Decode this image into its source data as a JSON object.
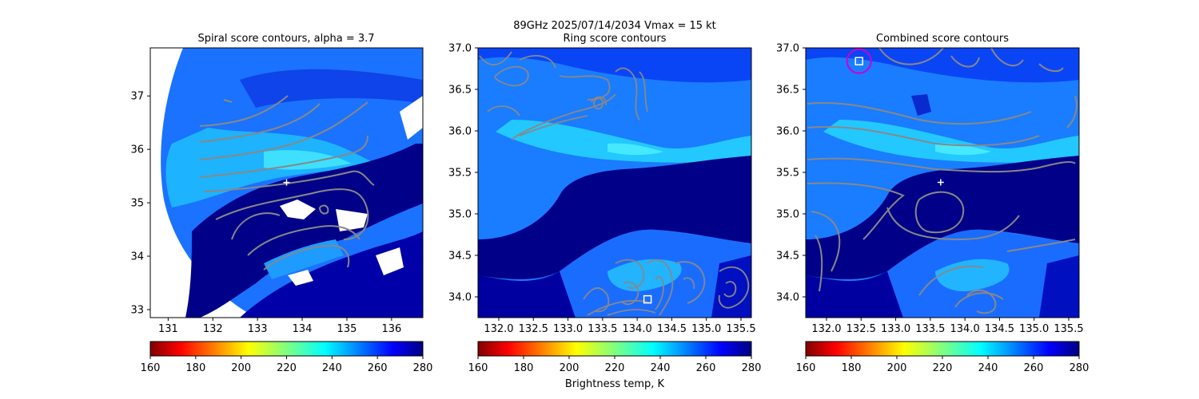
{
  "suptitle_line1": "89GHz  2025/07/14/2034    Vmax = 15 kt",
  "colors": {
    "warm_blue": "#00c8ff",
    "cyan": "#1ee6ff",
    "mid_blue": "#1a4dff",
    "deep_blue": "#0000c8",
    "navy": "#000088",
    "contour": "#888888",
    "marker": "#ffffff",
    "circle": "#cc00cc"
  },
  "chart_data": [
    {
      "type": "heatmap",
      "title": "Spiral score contours, alpha =  3.7",
      "xlim": [
        130.6,
        136.7
      ],
      "ylim": [
        32.85,
        37.9
      ],
      "xticks": [
        131,
        132,
        133,
        134,
        135,
        136
      ],
      "yticks": [
        33,
        34,
        35,
        36,
        37
      ],
      "center_marker": {
        "x": 133.65,
        "y": 35.38
      },
      "colorbar": {
        "min": 160,
        "max": 280,
        "ticks": [
          160,
          180,
          200,
          220,
          240,
          260,
          280
        ],
        "label": ""
      }
    },
    {
      "type": "heatmap",
      "title": "Ring score contours",
      "xlim": [
        131.7,
        135.65
      ],
      "ylim": [
        33.75,
        37.0
      ],
      "xticks": [
        132.0,
        132.5,
        133.0,
        133.5,
        134.0,
        134.5,
        135.0,
        135.5
      ],
      "yticks": [
        34.0,
        34.5,
        35.0,
        35.5,
        36.0,
        36.5,
        37.0
      ],
      "best_marker": {
        "x": 134.15,
        "y": 33.97
      },
      "colorbar": {
        "min": 160,
        "max": 280,
        "ticks": [
          160,
          180,
          200,
          220,
          240,
          260,
          280
        ],
        "label": "Brightness temp, K"
      }
    },
    {
      "type": "heatmap",
      "title": "Combined score contours",
      "xlim": [
        131.7,
        135.65
      ],
      "ylim": [
        33.75,
        37.0
      ],
      "xticks": [
        132.0,
        132.5,
        133.0,
        133.5,
        134.0,
        134.5,
        135.0,
        135.5
      ],
      "yticks": [
        34.0,
        34.5,
        35.0,
        35.5,
        36.0,
        36.5,
        37.0
      ],
      "center_marker": {
        "x": 133.65,
        "y": 35.38
      },
      "best_marker": {
        "x": 132.47,
        "y": 36.84
      },
      "colorbar": {
        "min": 160,
        "max": 280,
        "ticks": [
          160,
          180,
          200,
          220,
          240,
          260,
          280
        ],
        "label": ""
      }
    }
  ]
}
